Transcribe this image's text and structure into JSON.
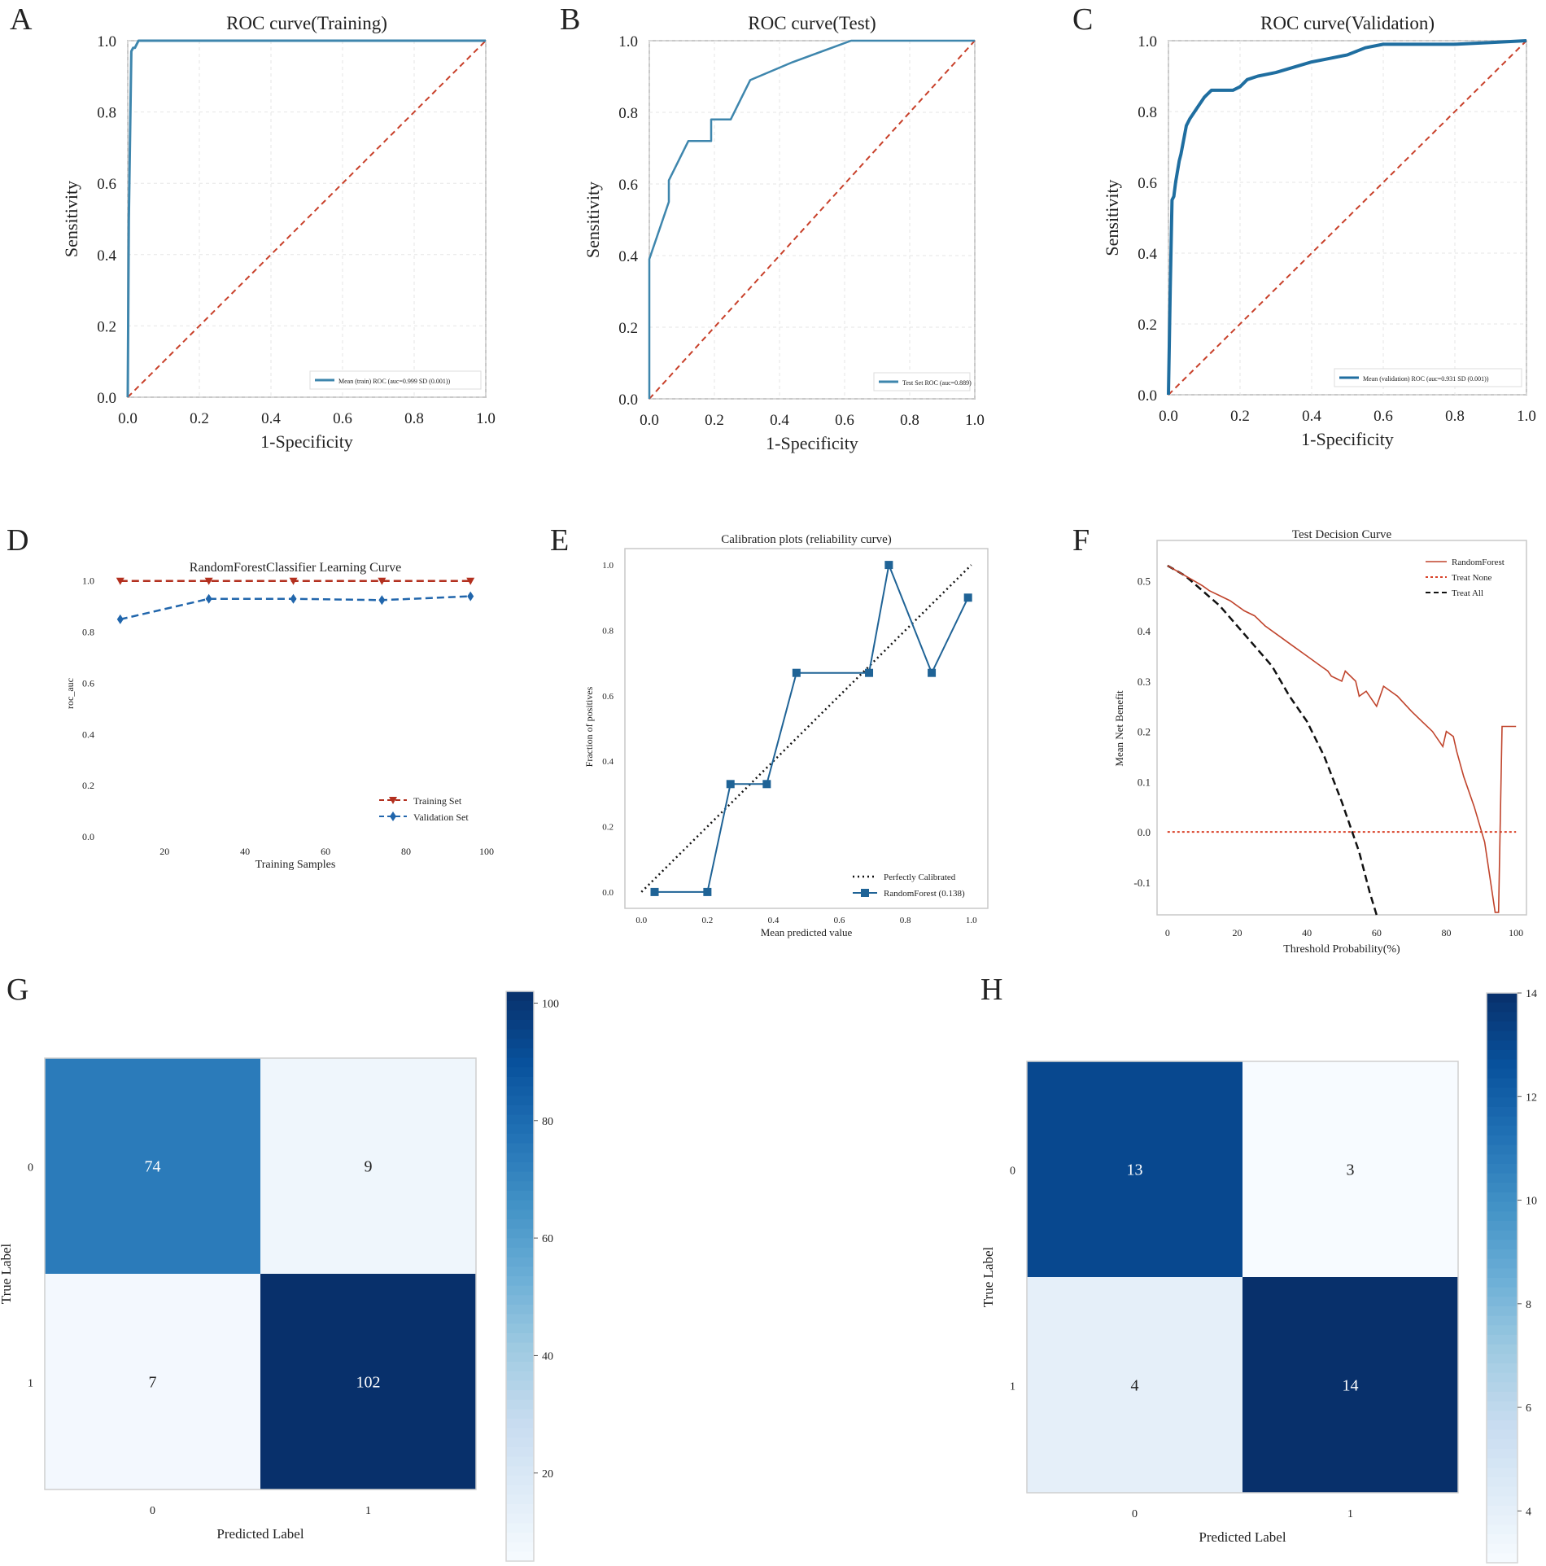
{
  "panels": [
    {
      "letter": "A"
    },
    {
      "letter": "B"
    },
    {
      "letter": "C"
    },
    {
      "letter": "D"
    },
    {
      "letter": "E"
    },
    {
      "letter": "F"
    },
    {
      "letter": "G"
    },
    {
      "letter": "H"
    }
  ],
  "colors": {
    "roc_line": "#3e86ad",
    "roc_line_c": "#1f6ea0",
    "chance": "#c8402a",
    "train_lc": "#b3301f",
    "val_lc": "#2166ac",
    "cal_line": "#1f6396",
    "dc_rf": "#c0442c",
    "dc_none": "#d9432a",
    "dc_all": "#111111",
    "grid": "#e6e6e6",
    "frame": "#c9c9c9"
  },
  "chart_data": [
    {
      "type": "line",
      "title": "ROC curve(Training)",
      "xlabel": "1-Specificity",
      "ylabel": "Sensitivity",
      "xlim": [
        0,
        1
      ],
      "ylim": [
        0,
        1
      ],
      "xticks": [
        "0.0",
        "0.2",
        "0.4",
        "0.6",
        "0.8",
        "1.0"
      ],
      "yticks": [
        "0.0",
        "0.2",
        "0.4",
        "0.6",
        "0.8",
        "1.0"
      ],
      "series": [
        {
          "name": "Mean (train) ROC (auc=0.999 SD (0.001))",
          "x": [
            0,
            0.003,
            0.01,
            0.015,
            0.02,
            0.03,
            0.5,
            1.0
          ],
          "y": [
            0,
            0.5,
            0.97,
            0.98,
            0.98,
            1.0,
            1.0,
            1.0
          ]
        },
        {
          "name": "chance",
          "x": [
            0,
            1
          ],
          "y": [
            0,
            1
          ]
        }
      ],
      "legend": "Mean (train) ROC (auc=0.999 SD (0.001))"
    },
    {
      "type": "line",
      "title": "ROC curve(Test)",
      "xlabel": "1-Specificity",
      "ylabel": "Sensitivity",
      "xlim": [
        0,
        1
      ],
      "ylim": [
        0,
        1
      ],
      "xticks": [
        "0.0",
        "0.2",
        "0.4",
        "0.6",
        "0.8",
        "1.0"
      ],
      "yticks": [
        "0.0",
        "0.2",
        "0.4",
        "0.6",
        "0.8",
        "1.0"
      ],
      "series": [
        {
          "name": "Test Set ROC (auc=0.889)",
          "x": [
            0,
            0,
            0.06,
            0.06,
            0.06,
            0.12,
            0.19,
            0.19,
            0.25,
            0.31,
            0.44,
            0.62,
            1.0
          ],
          "y": [
            0,
            0.39,
            0.55,
            0.56,
            0.61,
            0.72,
            0.72,
            0.78,
            0.78,
            0.89,
            0.94,
            1.0,
            1.0
          ]
        },
        {
          "name": "chance",
          "x": [
            0,
            1
          ],
          "y": [
            0,
            1
          ]
        }
      ],
      "legend": "Test Set ROC (auc=0.889)"
    },
    {
      "type": "line",
      "title": "ROC curve(Validation)",
      "xlabel": "1-Specificity",
      "ylabel": "Sensitivity",
      "xlim": [
        0,
        1
      ],
      "ylim": [
        0,
        1
      ],
      "xticks": [
        "0.0",
        "0.2",
        "0.4",
        "0.6",
        "0.8",
        "1.0"
      ],
      "yticks": [
        "0.0",
        "0.2",
        "0.4",
        "0.6",
        "0.8",
        "1.0"
      ],
      "series": [
        {
          "name": "Mean (validation) ROC (auc=0.931 SD (0.001))",
          "x": [
            0,
            0.005,
            0.01,
            0.015,
            0.02,
            0.03,
            0.035,
            0.05,
            0.06,
            0.08,
            0.1,
            0.12,
            0.15,
            0.18,
            0.2,
            0.22,
            0.25,
            0.3,
            0.35,
            0.4,
            0.45,
            0.5,
            0.55,
            0.6,
            0.7,
            0.8,
            0.9,
            1.0
          ],
          "y": [
            0,
            0.3,
            0.55,
            0.56,
            0.6,
            0.66,
            0.68,
            0.76,
            0.78,
            0.81,
            0.84,
            0.86,
            0.86,
            0.86,
            0.87,
            0.89,
            0.9,
            0.91,
            0.925,
            0.94,
            0.95,
            0.96,
            0.98,
            0.99,
            0.99,
            0.99,
            0.995,
            1.0
          ]
        },
        {
          "name": "chance",
          "x": [
            0,
            1
          ],
          "y": [
            0,
            1
          ]
        }
      ],
      "legend": "Mean (validation) ROC (auc=0.931 SD (0.001))"
    },
    {
      "type": "line",
      "title": "RandomForestClassifier Learning Curve",
      "xlabel": "Training Samples",
      "ylabel": "roc_auc",
      "xlim": [
        5,
        100
      ],
      "ylim": [
        0,
        1.05
      ],
      "xticks": [
        "20",
        "40",
        "60",
        "80",
        "100"
      ],
      "yticks": [
        "0.0",
        "0.2",
        "0.4",
        "0.6",
        "0.8",
        "1.0"
      ],
      "series": [
        {
          "name": "Training Set",
          "x": [
            9,
            31,
            52,
            74,
            96
          ],
          "y": [
            1.0,
            1.0,
            1.0,
            1.0,
            1.0
          ]
        },
        {
          "name": "Validation Set",
          "x": [
            9,
            31,
            52,
            74,
            96
          ],
          "y": [
            0.85,
            0.93,
            0.93,
            0.925,
            0.94
          ]
        }
      ]
    },
    {
      "type": "line",
      "title": "Calibration plots  (reliability curve)",
      "xlabel": "Mean predicted value",
      "ylabel": "Fraction of positives",
      "xlim": [
        -0.05,
        1.05
      ],
      "ylim": [
        -0.05,
        1.05
      ],
      "xticks": [
        "0.0",
        "0.2",
        "0.4",
        "0.6",
        "0.8",
        "1.0"
      ],
      "yticks": [
        "0.0",
        "0.2",
        "0.4",
        "0.6",
        "0.8",
        "1.0"
      ],
      "series": [
        {
          "name": "Perfectly Calibrated",
          "x": [
            0,
            1
          ],
          "y": [
            0,
            1
          ]
        },
        {
          "name": "RandomForest (0.138)",
          "x": [
            0.04,
            0.2,
            0.27,
            0.38,
            0.47,
            0.69,
            0.75,
            0.88,
            0.99
          ],
          "y": [
            0.0,
            0.0,
            0.33,
            0.33,
            0.67,
            0.67,
            1.0,
            0.67,
            0.9
          ]
        }
      ]
    },
    {
      "type": "line",
      "title": "Test Decision Curve",
      "xlabel": "Threshold Probability(%)",
      "ylabel": "Mean Net Benefit",
      "xlim": [
        -3,
        103
      ],
      "ylim": [
        -0.165,
        0.58
      ],
      "xticks": [
        "0",
        "20",
        "40",
        "60",
        "80",
        "100"
      ],
      "yticks": [
        "-0.1",
        "0.0",
        "0.1",
        "0.2",
        "0.3",
        "0.4",
        "0.5"
      ],
      "series": [
        {
          "name": "RandomForest",
          "x": [
            0,
            5,
            10,
            12,
            15,
            18,
            22,
            25,
            28,
            32,
            36,
            40,
            44,
            46,
            47,
            50,
            51,
            54,
            55,
            57,
            59,
            60,
            62,
            66,
            70,
            73,
            76,
            79,
            80,
            82,
            83,
            85,
            88,
            91,
            94,
            95,
            96,
            100
          ],
          "y": [
            0.53,
            0.51,
            0.49,
            0.48,
            0.47,
            0.46,
            0.44,
            0.43,
            0.41,
            0.39,
            0.37,
            0.35,
            0.33,
            0.32,
            0.31,
            0.3,
            0.32,
            0.3,
            0.27,
            0.28,
            0.26,
            0.25,
            0.29,
            0.27,
            0.24,
            0.22,
            0.2,
            0.17,
            0.2,
            0.19,
            0.16,
            0.11,
            0.05,
            -0.02,
            -0.16,
            -0.16,
            0.21,
            0.21
          ]
        },
        {
          "name": "Treat None",
          "x": [
            0,
            100
          ],
          "y": [
            0,
            0
          ]
        },
        {
          "name": "Treat All",
          "x": [
            0,
            5,
            10,
            15,
            20,
            25,
            30,
            35,
            40,
            45,
            50,
            55,
            58,
            60
          ],
          "y": [
            0.53,
            0.51,
            0.48,
            0.45,
            0.41,
            0.37,
            0.33,
            0.27,
            0.22,
            0.15,
            0.06,
            -0.04,
            -0.12,
            -0.165
          ]
        }
      ]
    },
    {
      "type": "heatmap",
      "xlabel": "Predicted Label",
      "ylabel": "True Label",
      "xcategories": [
        "0",
        "1"
      ],
      "ycategories": [
        "0",
        "1"
      ],
      "values": [
        [
          74,
          9
        ],
        [
          7,
          102
        ]
      ],
      "colorbar": {
        "min": 5,
        "max": 102,
        "ticks": [
          "20",
          "40",
          "60",
          "80",
          "100"
        ],
        "tick_values": [
          20,
          40,
          60,
          80,
          100
        ]
      }
    },
    {
      "type": "heatmap",
      "xlabel": "Predicted Label",
      "ylabel": "True Label",
      "xcategories": [
        "0",
        "1"
      ],
      "ycategories": [
        "0",
        "1"
      ],
      "values": [
        [
          13,
          3
        ],
        [
          4,
          14
        ]
      ],
      "colorbar": {
        "min": 3,
        "max": 14,
        "ticks": [
          "4",
          "6",
          "8",
          "10",
          "12",
          "14"
        ],
        "tick_values": [
          4,
          6,
          8,
          10,
          12,
          14
        ]
      }
    }
  ]
}
